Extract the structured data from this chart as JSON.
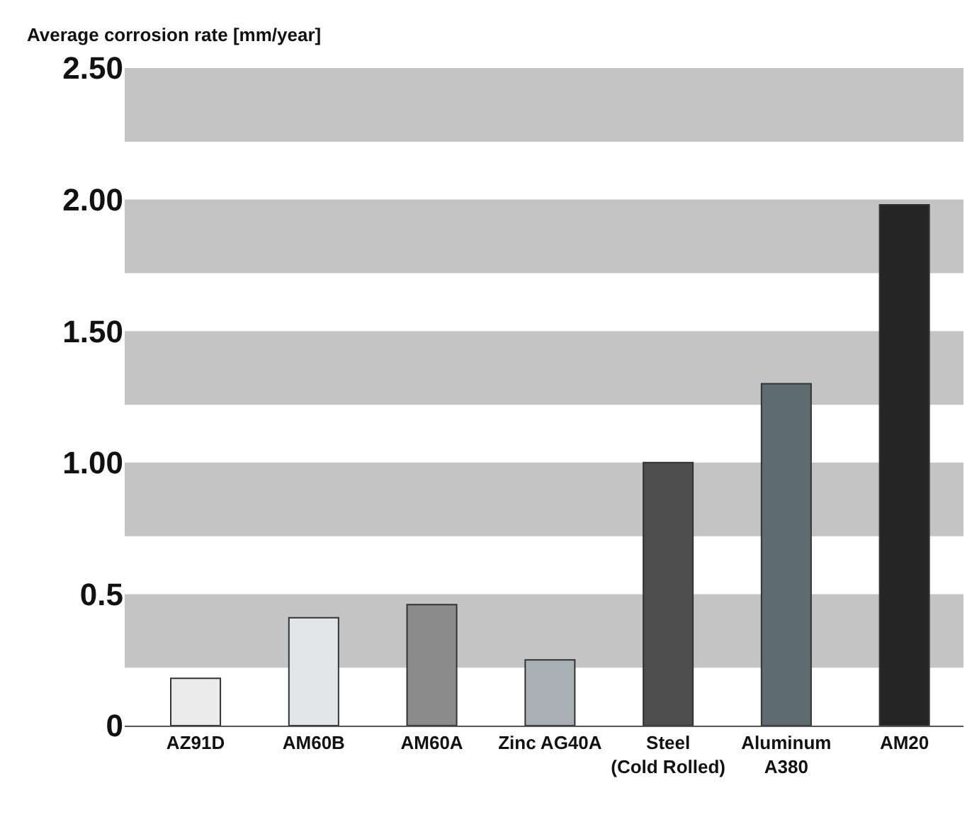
{
  "chart_data": {
    "type": "bar",
    "ylabel": "Average corrosion rate [mm/year]",
    "categories": [
      "AZ91D",
      "AM60B",
      "AM60A",
      "Zinc AG40A",
      "Steel (Cold Rolled)",
      "Aluminum A380",
      "AM20"
    ],
    "values": [
      0.18,
      0.41,
      0.46,
      0.25,
      1.0,
      1.3,
      1.98
    ],
    "colors": [
      "#ebebeb",
      "#e2e6e8",
      "#8c8c8c",
      "#a9b1b5",
      "#4d4d4d",
      "#5e6c72",
      "#252525"
    ],
    "ylim": [
      0,
      2.5
    ],
    "yticks": [
      0,
      {
        "value": 0.5,
        "label": "0.5"
      },
      {
        "value": 1,
        "label": "1.00"
      },
      {
        "value": 1.5,
        "label": "1.50"
      },
      {
        "value": 2,
        "label": "2.00"
      },
      {
        "value": 2.5,
        "label": "2.50"
      }
    ],
    "bands": [
      {
        "axis": "y",
        "from": 0.22,
        "to": 0.5,
        "color": "#c4c4c4"
      },
      {
        "axis": "y",
        "from": 0.72,
        "to": 1.0,
        "color": "#c4c4c4"
      },
      {
        "axis": "y",
        "from": 1.22,
        "to": 1.5,
        "color": "#c4c4c4"
      },
      {
        "axis": "y",
        "from": 1.72,
        "to": 2.0,
        "color": "#c4c4c4"
      },
      {
        "axis": "y",
        "from": 2.22,
        "to": 2.5,
        "color": "#c4c4c4"
      }
    ],
    "tick_labels": "xy"
  }
}
